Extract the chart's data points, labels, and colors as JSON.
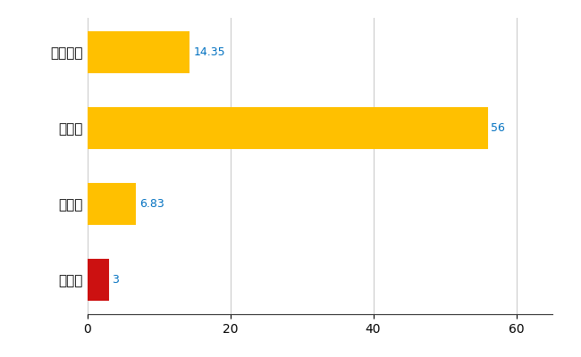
{
  "categories": [
    "日高町",
    "県平均",
    "県最大",
    "全国平均"
  ],
  "values": [
    3,
    6.83,
    56,
    14.35
  ],
  "bar_colors": [
    "#CC1111",
    "#FFC000",
    "#FFC000",
    "#FFC000"
  ],
  "value_labels": [
    "3",
    "6.83",
    "56",
    "14.35"
  ],
  "xlim": [
    0,
    65
  ],
  "xticks": [
    0,
    20,
    40,
    60
  ],
  "grid_color": "#CCCCCC",
  "bg_color": "#FFFFFF",
  "label_color": "#0070C0",
  "bar_height": 0.55
}
